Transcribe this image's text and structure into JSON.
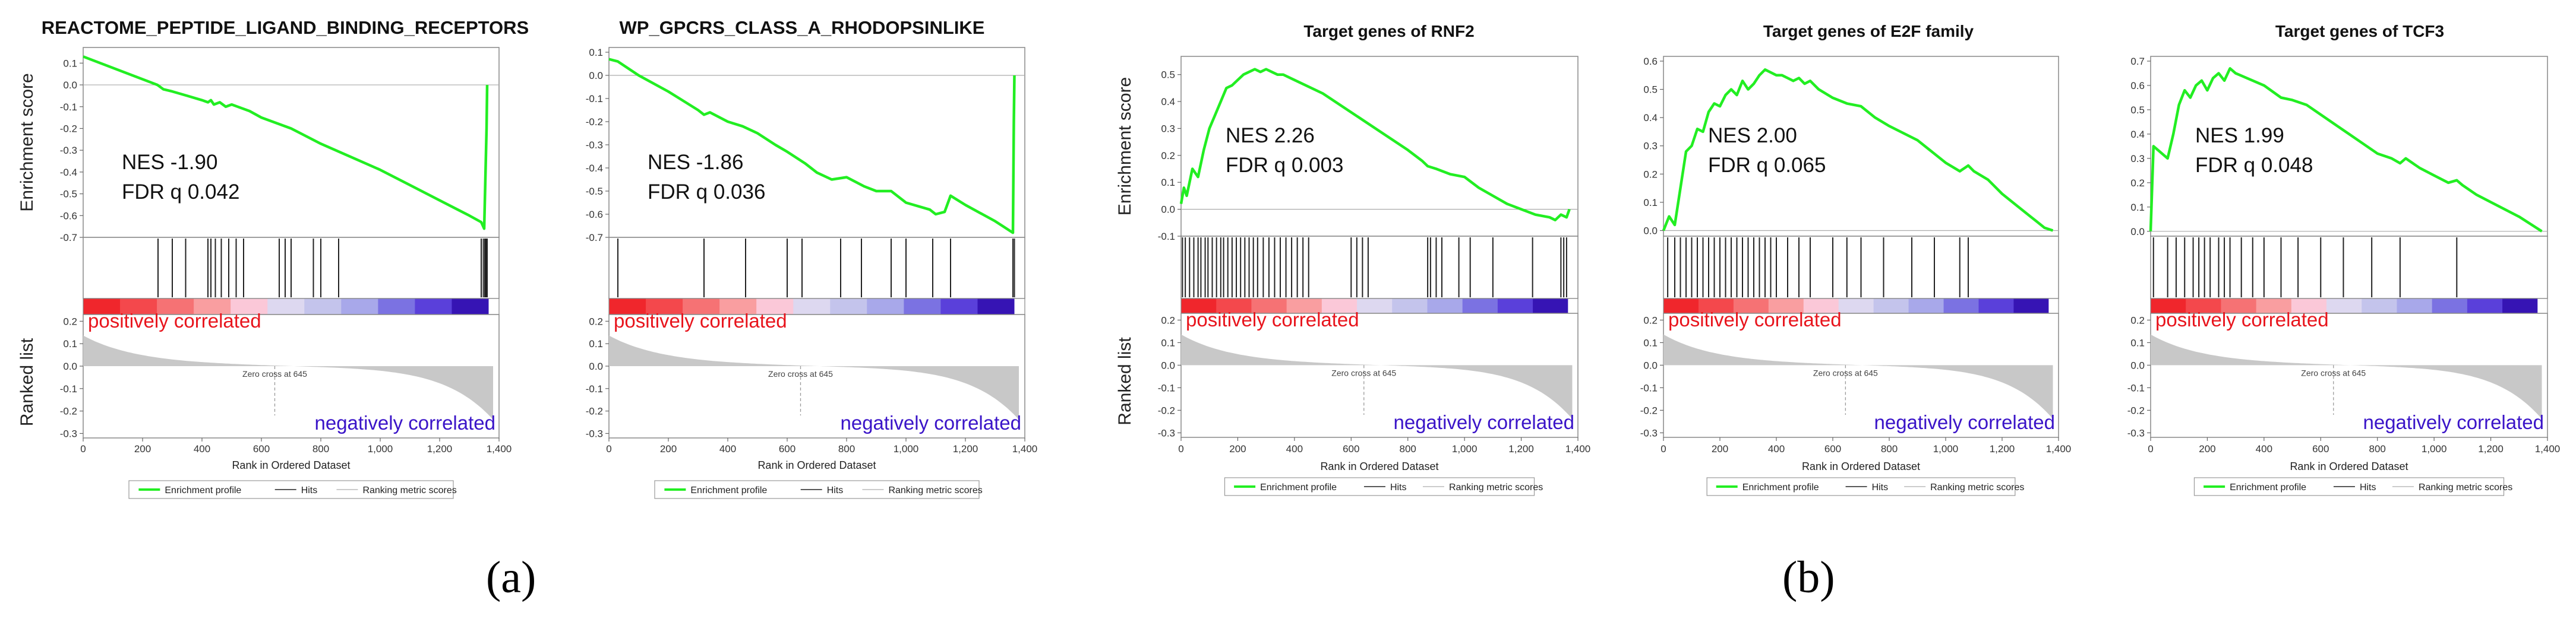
{
  "figure_labels": {
    "a": "(a)",
    "b": "(b)"
  },
  "common": {
    "xlabel": "Rank in Ordered Dataset",
    "es_ylabel": "Enrichment score",
    "rl_ylabel": "Ranked list",
    "pos_label": "positively correlated",
    "neg_label": "negatively correlated",
    "zero_cross": "Zero cross at 645",
    "legend": [
      "Enrichment profile",
      "Hits",
      "Ranking metric scores"
    ],
    "x_ticks": [
      0,
      200,
      400,
      600,
      800,
      1000,
      1200,
      1400
    ],
    "x_tick_labels": [
      "0",
      "200",
      "400",
      "600",
      "800",
      "1,000",
      "1,200",
      "1,400"
    ],
    "rl_ticks": [
      0.2,
      0.1,
      0.0,
      -0.1,
      -0.2,
      -0.3
    ],
    "rl_tick_labels": [
      "0.2",
      "0.1",
      "0.0",
      "-0.1",
      "-0.2",
      "-0.3"
    ],
    "colors": {
      "es_line": "#22ee22",
      "pos_text": "#e8141c",
      "neg_text": "#3a14c8",
      "bar_fill": "#c8c8c8"
    },
    "heat_colors": [
      "#f0262c",
      "#f4484c",
      "#f67274",
      "#f99ea0",
      "#fbc8d8",
      "#ddd8f0",
      "#c4c4ec",
      "#a8a8ea",
      "#7b72e2",
      "#5a40da",
      "#3614b4"
    ]
  },
  "chart_data": [
    {
      "type": "line",
      "title": "REACTOME_PEPTIDE_LIGAND_BINDING_RECEPTORS",
      "nes_text": "NES -1.90",
      "fdr_text": "FDR q 0.042",
      "ylim": [
        -0.7,
        0.15
      ],
      "yticks": [
        0.1,
        0.0,
        -0.1,
        -0.2,
        -0.3,
        -0.4,
        -0.5,
        -0.6,
        -0.7
      ],
      "ytick_labels": [
        "0.1",
        "0.0",
        "-0.1",
        "-0.2",
        "-0.3",
        "-0.4",
        "-0.5",
        "-0.6",
        "-0.7"
      ],
      "xlim": [
        0,
        1400
      ],
      "es_curve": [
        [
          0,
          0.13
        ],
        [
          250,
          0.0
        ],
        [
          270,
          -0.02
        ],
        [
          300,
          -0.03
        ],
        [
          350,
          -0.05
        ],
        [
          400,
          -0.07
        ],
        [
          420,
          -0.08
        ],
        [
          430,
          -0.07
        ],
        [
          440,
          -0.09
        ],
        [
          460,
          -0.08
        ],
        [
          480,
          -0.1
        ],
        [
          500,
          -0.09
        ],
        [
          520,
          -0.1
        ],
        [
          560,
          -0.12
        ],
        [
          600,
          -0.15
        ],
        [
          700,
          -0.2
        ],
        [
          800,
          -0.27
        ],
        [
          900,
          -0.33
        ],
        [
          1000,
          -0.39
        ],
        [
          1100,
          -0.46
        ],
        [
          1200,
          -0.53
        ],
        [
          1300,
          -0.6
        ],
        [
          1340,
          -0.63
        ],
        [
          1350,
          -0.66
        ],
        [
          1358,
          -0.2
        ],
        [
          1360,
          -0.0
        ]
      ],
      "hits": [
        252,
        300,
        345,
        420,
        430,
        445,
        465,
        490,
        515,
        540,
        660,
        680,
        700,
        775,
        800,
        860,
        1340,
        1347,
        1352,
        1356,
        1360
      ]
    },
    {
      "type": "line",
      "title": "WP_GPCRS_CLASS_A_RHODOPSINLIKE",
      "nes_text": "NES -1.86",
      "fdr_text": "FDR q 0.036",
      "ylim": [
        -0.7,
        0.1
      ],
      "yticks": [
        0.1,
        0.0,
        -0.1,
        -0.2,
        -0.3,
        -0.4,
        -0.5,
        -0.6,
        -0.7
      ],
      "ytick_labels": [
        "0.1",
        "0.0",
        "-0.1",
        "-0.2",
        "-0.3",
        "-0.4",
        "-0.5",
        "-0.6",
        "-0.7"
      ],
      "xlim": [
        0,
        1400
      ],
      "es_curve": [
        [
          0,
          0.07
        ],
        [
          30,
          0.06
        ],
        [
          100,
          0.0
        ],
        [
          200,
          -0.07
        ],
        [
          300,
          -0.15
        ],
        [
          320,
          -0.17
        ],
        [
          340,
          -0.16
        ],
        [
          400,
          -0.2
        ],
        [
          450,
          -0.22
        ],
        [
          500,
          -0.25
        ],
        [
          560,
          -0.3
        ],
        [
          600,
          -0.33
        ],
        [
          660,
          -0.38
        ],
        [
          700,
          -0.42
        ],
        [
          750,
          -0.45
        ],
        [
          800,
          -0.44
        ],
        [
          860,
          -0.48
        ],
        [
          900,
          -0.5
        ],
        [
          950,
          -0.5
        ],
        [
          1000,
          -0.55
        ],
        [
          1080,
          -0.58
        ],
        [
          1100,
          -0.6
        ],
        [
          1130,
          -0.59
        ],
        [
          1150,
          -0.52
        ],
        [
          1200,
          -0.56
        ],
        [
          1300,
          -0.63
        ],
        [
          1360,
          -0.68
        ],
        [
          1363,
          -0.2
        ],
        [
          1365,
          0.0
        ]
      ],
      "hits": [
        30,
        320,
        460,
        600,
        650,
        780,
        850,
        950,
        1000,
        1090,
        1150,
        1360,
        1365
      ]
    },
    {
      "type": "line",
      "title": "Target genes of RNF2",
      "nes_text": "NES 2.26",
      "fdr_text": "FDR q 0.003",
      "ylim": [
        -0.1,
        0.55
      ],
      "yticks": [
        0.5,
        0.4,
        0.3,
        0.2,
        0.1,
        0.0,
        -0.1
      ],
      "ytick_labels": [
        "0.5",
        "0.4",
        "0.3",
        "0.2",
        "0.1",
        "0.0",
        "-0.1"
      ],
      "xlim": [
        0,
        1400
      ],
      "es_curve": [
        [
          0,
          0.02
        ],
        [
          10,
          0.08
        ],
        [
          20,
          0.05
        ],
        [
          40,
          0.15
        ],
        [
          60,
          0.12
        ],
        [
          80,
          0.22
        ],
        [
          100,
          0.3
        ],
        [
          120,
          0.35
        ],
        [
          140,
          0.4
        ],
        [
          160,
          0.45
        ],
        [
          180,
          0.46
        ],
        [
          200,
          0.48
        ],
        [
          220,
          0.5
        ],
        [
          240,
          0.51
        ],
        [
          260,
          0.52
        ],
        [
          280,
          0.51
        ],
        [
          300,
          0.52
        ],
        [
          320,
          0.51
        ],
        [
          340,
          0.5
        ],
        [
          360,
          0.5
        ],
        [
          400,
          0.48
        ],
        [
          500,
          0.43
        ],
        [
          600,
          0.36
        ],
        [
          700,
          0.29
        ],
        [
          800,
          0.22
        ],
        [
          850,
          0.18
        ],
        [
          870,
          0.16
        ],
        [
          900,
          0.15
        ],
        [
          950,
          0.13
        ],
        [
          1000,
          0.12
        ],
        [
          1050,
          0.08
        ],
        [
          1100,
          0.05
        ],
        [
          1150,
          0.02
        ],
        [
          1200,
          0.0
        ],
        [
          1250,
          -0.02
        ],
        [
          1300,
          -0.03
        ],
        [
          1320,
          -0.04
        ],
        [
          1340,
          -0.02
        ],
        [
          1360,
          -0.03
        ],
        [
          1370,
          0.0
        ]
      ],
      "hits": [
        5,
        15,
        30,
        45,
        60,
        70,
        85,
        95,
        110,
        125,
        140,
        150,
        165,
        180,
        195,
        210,
        225,
        240,
        255,
        270,
        290,
        310,
        330,
        350,
        370,
        390,
        410,
        430,
        450,
        600,
        620,
        640,
        660,
        870,
        880,
        900,
        920,
        980,
        1020,
        1100,
        1240,
        1340,
        1350,
        1360
      ]
    },
    {
      "type": "line",
      "title": "Target genes of E2F family",
      "nes_text": "NES 2.00",
      "fdr_text": "FDR q 0.065",
      "ylim": [
        -0.02,
        0.6
      ],
      "yticks": [
        0.6,
        0.5,
        0.4,
        0.3,
        0.2,
        0.1,
        0.0
      ],
      "ytick_labels": [
        "0.6",
        "0.5",
        "0.4",
        "0.3",
        "0.2",
        "0.1",
        "0.0"
      ],
      "xlim": [
        0,
        1400
      ],
      "es_curve": [
        [
          0,
          0.0
        ],
        [
          20,
          0.05
        ],
        [
          40,
          0.02
        ],
        [
          60,
          0.15
        ],
        [
          80,
          0.28
        ],
        [
          100,
          0.3
        ],
        [
          120,
          0.36
        ],
        [
          140,
          0.35
        ],
        [
          160,
          0.42
        ],
        [
          180,
          0.45
        ],
        [
          200,
          0.44
        ],
        [
          220,
          0.48
        ],
        [
          240,
          0.5
        ],
        [
          260,
          0.48
        ],
        [
          280,
          0.53
        ],
        [
          300,
          0.5
        ],
        [
          320,
          0.52
        ],
        [
          340,
          0.55
        ],
        [
          360,
          0.57
        ],
        [
          380,
          0.56
        ],
        [
          400,
          0.55
        ],
        [
          420,
          0.55
        ],
        [
          440,
          0.54
        ],
        [
          460,
          0.53
        ],
        [
          480,
          0.54
        ],
        [
          500,
          0.52
        ],
        [
          520,
          0.53
        ],
        [
          550,
          0.5
        ],
        [
          600,
          0.47
        ],
        [
          650,
          0.45
        ],
        [
          700,
          0.44
        ],
        [
          750,
          0.4
        ],
        [
          800,
          0.37
        ],
        [
          900,
          0.32
        ],
        [
          950,
          0.28
        ],
        [
          1000,
          0.24
        ],
        [
          1050,
          0.21
        ],
        [
          1080,
          0.23
        ],
        [
          1100,
          0.21
        ],
        [
          1150,
          0.18
        ],
        [
          1200,
          0.13
        ],
        [
          1250,
          0.09
        ],
        [
          1300,
          0.05
        ],
        [
          1350,
          0.01
        ],
        [
          1380,
          0.0
        ]
      ],
      "hits": [
        15,
        40,
        60,
        80,
        100,
        120,
        140,
        160,
        180,
        200,
        220,
        240,
        260,
        280,
        300,
        320,
        340,
        360,
        380,
        400,
        440,
        480,
        520,
        600,
        650,
        700,
        780,
        880,
        960,
        1050,
        1080
      ]
    },
    {
      "type": "line",
      "title": "Target genes of TCF3",
      "nes_text": "NES 1.99",
      "fdr_text": "FDR q 0.048",
      "ylim": [
        -0.02,
        0.7
      ],
      "yticks": [
        0.7,
        0.6,
        0.5,
        0.4,
        0.3,
        0.2,
        0.1,
        0.0
      ],
      "ytick_labels": [
        "0.7",
        "0.6",
        "0.5",
        "0.4",
        "0.3",
        "0.2",
        "0.1",
        "0.0"
      ],
      "xlim": [
        0,
        1400
      ],
      "es_curve": [
        [
          0,
          0.0
        ],
        [
          10,
          0.35
        ],
        [
          30,
          0.33
        ],
        [
          60,
          0.3
        ],
        [
          80,
          0.4
        ],
        [
          100,
          0.52
        ],
        [
          120,
          0.58
        ],
        [
          140,
          0.55
        ],
        [
          160,
          0.6
        ],
        [
          180,
          0.62
        ],
        [
          200,
          0.58
        ],
        [
          220,
          0.63
        ],
        [
          240,
          0.65
        ],
        [
          260,
          0.62
        ],
        [
          280,
          0.67
        ],
        [
          300,
          0.65
        ],
        [
          320,
          0.64
        ],
        [
          340,
          0.63
        ],
        [
          360,
          0.62
        ],
        [
          400,
          0.6
        ],
        [
          460,
          0.55
        ],
        [
          500,
          0.54
        ],
        [
          550,
          0.52
        ],
        [
          600,
          0.48
        ],
        [
          650,
          0.44
        ],
        [
          700,
          0.4
        ],
        [
          750,
          0.36
        ],
        [
          800,
          0.32
        ],
        [
          850,
          0.3
        ],
        [
          880,
          0.28
        ],
        [
          900,
          0.3
        ],
        [
          950,
          0.26
        ],
        [
          1000,
          0.23
        ],
        [
          1050,
          0.2
        ],
        [
          1080,
          0.21
        ],
        [
          1100,
          0.19
        ],
        [
          1150,
          0.15
        ],
        [
          1200,
          0.12
        ],
        [
          1300,
          0.06
        ],
        [
          1380,
          0.0
        ]
      ],
      "hits": [
        10,
        60,
        90,
        120,
        150,
        170,
        190,
        210,
        240,
        260,
        280,
        320,
        360,
        400,
        460,
        520,
        600,
        680,
        780,
        880,
        1080
      ]
    }
  ]
}
